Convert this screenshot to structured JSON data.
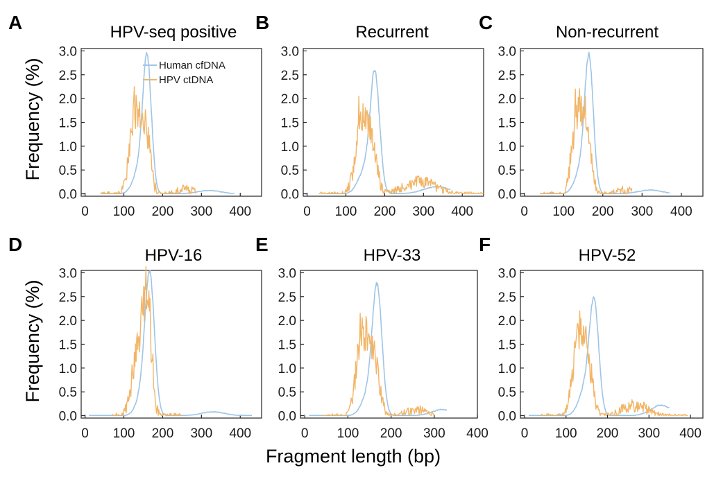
{
  "figure": {
    "ylabel": "Frequency (%)",
    "xlabel": "Fragment length (bp)"
  },
  "colors": {
    "human": "#9ec5e6",
    "hpv": "#f2b567"
  },
  "legend": {
    "human_label": "Human cfDNA",
    "hpv_label": "HPV ctDNA",
    "placement": "top-right inside panel A"
  },
  "chart_data": [
    {
      "letter": "A",
      "type": "line",
      "title": "HPV-seq positive",
      "xlim": [
        -10,
        455
      ],
      "ylim": [
        -0.05,
        3.05
      ],
      "xticks": [
        "0",
        "100",
        "200",
        "300",
        "400"
      ],
      "xtick_values": [
        0,
        100,
        200,
        300,
        400
      ],
      "yticks": [
        "0.0",
        "0.5",
        "1.0",
        "1.5",
        "2.0",
        "2.5",
        "3.0"
      ],
      "ytick_values": [
        0,
        0.5,
        1.0,
        1.5,
        2.0,
        2.5,
        3.0
      ],
      "series": [
        {
          "name": "Human cfDNA",
          "peaks": [
            [
              160,
              2.7,
              11
            ],
            [
              140,
              0.5,
              16
            ],
            [
              320,
              0.07,
              30
            ]
          ],
          "range": [
            40,
            385
          ],
          "noise": 0.02
        },
        {
          "name": "HPV ctDNA",
          "peaks": [
            [
              130,
              1.7,
              14
            ],
            [
              158,
              1.2,
              11
            ],
            [
              260,
              0.1,
              22
            ]
          ],
          "range": [
            40,
            285
          ],
          "noise": 0.22,
          "spikes": [
            [
              127,
              2.25
            ]
          ]
        }
      ]
    },
    {
      "letter": "B",
      "type": "line",
      "title": "Recurrent",
      "xlim": [
        -10,
        455
      ],
      "ylim": [
        -0.05,
        3.05
      ],
      "xticks": [
        "0",
        "100",
        "200",
        "300",
        "400"
      ],
      "xtick_values": [
        0,
        100,
        200,
        300,
        400
      ],
      "yticks": [
        "0.0",
        "0.5",
        "1.0",
        "1.5",
        "2.0",
        "2.5",
        "3.0"
      ],
      "ytick_values": [
        0,
        0.5,
        1.0,
        1.5,
        2.0,
        2.5,
        3.0
      ],
      "series": [
        {
          "name": "Human cfDNA",
          "peaks": [
            [
              175,
              2.4,
              12
            ],
            [
              150,
              0.5,
              18
            ],
            [
              335,
              0.15,
              35
            ]
          ],
          "range": [
            50,
            370
          ],
          "noise": 0.02
        },
        {
          "name": "HPV ctDNA",
          "peaks": [
            [
              140,
              1.3,
              16
            ],
            [
              165,
              0.9,
              14
            ],
            [
              290,
              0.25,
              40
            ]
          ],
          "range": [
            30,
            455
          ],
          "noise": 0.2,
          "spikes": [
            [
              133,
              2.05
            ]
          ]
        }
      ]
    },
    {
      "letter": "C",
      "type": "line",
      "title": "Non-recurrent",
      "xlim": [
        -10,
        455
      ],
      "ylim": [
        -0.05,
        3.05
      ],
      "xticks": [
        "0",
        "100",
        "200",
        "300",
        "400"
      ],
      "xtick_values": [
        0,
        100,
        200,
        300,
        400
      ],
      "yticks": [
        "0.0",
        "0.5",
        "1.0",
        "1.5",
        "2.0",
        "2.5",
        "3.0"
      ],
      "ytick_values": [
        0,
        0.5,
        1.0,
        1.5,
        2.0,
        2.5,
        3.0
      ],
      "series": [
        {
          "name": "Human cfDNA",
          "peaks": [
            [
              165,
              2.7,
              11
            ],
            [
              145,
              0.5,
              16
            ],
            [
              320,
              0.08,
              30
            ]
          ],
          "range": [
            40,
            370
          ],
          "noise": 0.02
        },
        {
          "name": "HPV ctDNA",
          "peaks": [
            [
              135,
              1.5,
              14
            ],
            [
              158,
              1.2,
              12
            ],
            [
              255,
              0.08,
              22
            ]
          ],
          "range": [
            40,
            275
          ],
          "noise": 0.22,
          "spikes": [
            [
              130,
              2.2
            ]
          ]
        }
      ]
    },
    {
      "letter": "D",
      "type": "line",
      "title": "HPV-16",
      "xlim": [
        -10,
        455
      ],
      "ylim": [
        -0.05,
        3.05
      ],
      "xticks": [
        "0",
        "100",
        "200",
        "300",
        "400"
      ],
      "xtick_values": [
        0,
        100,
        200,
        300,
        400
      ],
      "yticks": [
        "0.0",
        "0.5",
        "1.0",
        "1.5",
        "2.0",
        "2.5",
        "3.0"
      ],
      "ytick_values": [
        0,
        0.5,
        1.0,
        1.5,
        2.0,
        2.5,
        3.0
      ],
      "series": [
        {
          "name": "Human cfDNA",
          "peaks": [
            [
              167,
              2.75,
              12
            ],
            [
              150,
              0.5,
              16
            ],
            [
              330,
              0.08,
              30
            ]
          ],
          "range": [
            10,
            430
          ],
          "noise": 0.02
        },
        {
          "name": "HPV ctDNA",
          "peaks": [
            [
              140,
              1.5,
              16
            ],
            [
              162,
              1.9,
              10
            ]
          ],
          "range": [
            70,
            250
          ],
          "noise": 0.28,
          "spikes": [
            [
              165,
              2.62
            ]
          ]
        }
      ]
    },
    {
      "letter": "E",
      "type": "line",
      "title": "HPV-33",
      "xlim": [
        -10,
        400
      ],
      "ylim": [
        -0.05,
        3.05
      ],
      "xticks": [
        "0",
        "100",
        "200",
        "300",
        "400"
      ],
      "xtick_values": [
        0,
        100,
        200,
        300,
        400
      ],
      "yticks": [
        "0.0",
        "0.5",
        "1.0",
        "1.5",
        "2.0",
        "2.5",
        "3.0"
      ],
      "ytick_values": [
        0,
        0.5,
        1.0,
        1.5,
        2.0,
        2.5,
        3.0
      ],
      "series": [
        {
          "name": "Human cfDNA",
          "peaks": [
            [
              168,
              2.5,
              11
            ],
            [
              150,
              0.5,
              16
            ],
            [
              320,
              0.13,
              25
            ]
          ],
          "range": [
            10,
            330
          ],
          "noise": 0.02
        },
        {
          "name": "HPV ctDNA",
          "peaks": [
            [
              133,
              1.6,
              14
            ],
            [
              160,
              1.2,
              12
            ],
            [
              260,
              0.12,
              25
            ]
          ],
          "range": [
            40,
            300
          ],
          "noise": 0.22,
          "spikes": [
            [
              128,
              2.15
            ]
          ]
        }
      ]
    },
    {
      "letter": "F",
      "type": "line",
      "title": "HPV-52",
      "xlim": [
        -10,
        430
      ],
      "ylim": [
        -0.05,
        3.05
      ],
      "xticks": [
        "0",
        "100",
        "200",
        "300",
        "400"
      ],
      "xtick_values": [
        0,
        100,
        200,
        300,
        400
      ],
      "yticks": [
        "0.0",
        "0.5",
        "1.0",
        "1.5",
        "2.0",
        "2.5",
        "3.0"
      ],
      "ytick_values": [
        0,
        0.5,
        1.0,
        1.5,
        2.0,
        2.5,
        3.0
      ],
      "series": [
        {
          "name": "Human cfDNA",
          "peaks": [
            [
              168,
              2.2,
              11
            ],
            [
              148,
              0.6,
              16
            ],
            [
              330,
              0.22,
              25
            ]
          ],
          "range": [
            10,
            350
          ],
          "noise": 0.02
        },
        {
          "name": "HPV ctDNA",
          "peaks": [
            [
              130,
              1.5,
              14
            ],
            [
              152,
              1.0,
              12
            ],
            [
              265,
              0.22,
              30
            ]
          ],
          "range": [
            40,
            395
          ],
          "noise": 0.22,
          "spikes": [
            [
              133,
              2.2
            ]
          ]
        }
      ]
    }
  ]
}
